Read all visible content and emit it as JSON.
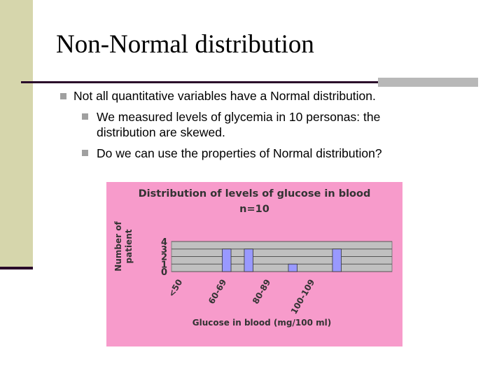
{
  "slide": {
    "title": "Non-Normal distribution",
    "bullets": [
      "Not all quantitative variables have a Normal distribution."
    ],
    "sub_bullets": [
      "We measured levels of glycemia in 10 personas: the distribution are skewed.",
      "Do we can use the properties of Normal distribution?"
    ]
  },
  "chart_data": {
    "type": "bar",
    "title": "Distribution of levels of glucose in blood n=10",
    "x_label": "Glucose in blood (mg/100 ml)",
    "y_label": "Number of patient",
    "categories": [
      "<50",
      null,
      "60-69",
      null,
      "80-89",
      null,
      "100-109",
      null,
      null,
      null
    ],
    "values": [
      0,
      0,
      3,
      3,
      0,
      1,
      0,
      3,
      0,
      0
    ],
    "color": "#9999ff",
    "ylim": [
      0,
      4
    ],
    "yticks": [
      0,
      1,
      2,
      3,
      4
    ],
    "grid": true
  }
}
